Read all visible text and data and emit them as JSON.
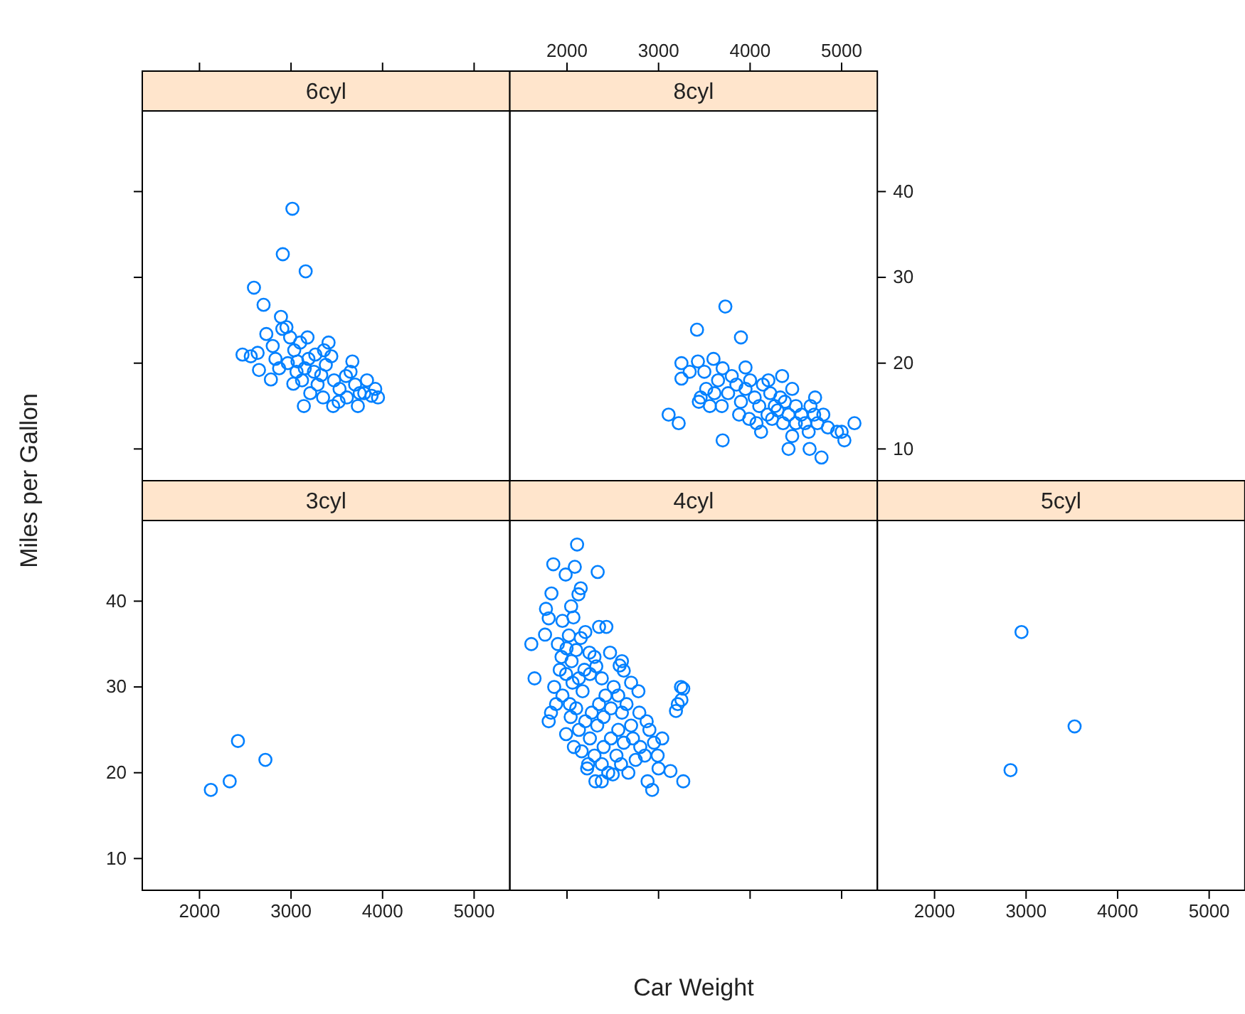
{
  "chart_data": [
    {
      "type": "scatter",
      "title": "6cyl",
      "xlim": [
        1375,
        5390
      ],
      "ylim": [
        6.3,
        49.4
      ],
      "xticks": [
        2000,
        3000,
        4000,
        5000
      ],
      "yticks": [
        10,
        20,
        30,
        40
      ],
      "tick_labels": false,
      "marker": "circle",
      "grid": false,
      "series": [
        {
          "color": "#0080ff",
          "x": [
            3015,
            2910,
            3160,
            2595,
            2700,
            2890,
            2950,
            2730,
            2470,
            2635,
            2650,
            2780,
            3100,
            3410,
            3670,
            3920,
            3730,
            3140,
            3460,
            3880,
            2560,
            2905,
            2990,
            3035,
            3190,
            3250,
            3330,
            3380,
            3470,
            3530,
            3600,
            3700,
            3800,
            3830,
            3290,
            3210,
            3060,
            2965,
            2830,
            3120,
            3350,
            3520,
            3610,
            3440,
            3265,
            3025,
            2870,
            3180,
            3360,
            3650,
            3750,
            3950,
            3070,
            3150,
            2800
          ],
          "values": [
            38.0,
            32.7,
            30.7,
            28.8,
            26.8,
            25.4,
            24.2,
            23.4,
            21.0,
            21.2,
            19.2,
            18.1,
            22.4,
            22.4,
            20.2,
            17.0,
            15.0,
            15.0,
            15.0,
            16.2,
            20.8,
            24.0,
            23.0,
            21.5,
            20.5,
            19.0,
            18.6,
            19.8,
            18.0,
            17.0,
            18.5,
            17.5,
            16.5,
            18.0,
            17.5,
            16.5,
            19.0,
            20.0,
            20.5,
            18.0,
            16.0,
            15.5,
            16.0,
            20.8,
            21.0,
            17.6,
            19.4,
            23.0,
            21.5,
            19.0,
            16.5,
            16.0,
            20.2,
            19.4,
            22.0
          ]
        }
      ]
    },
    {
      "type": "scatter",
      "title": "8cyl",
      "xlim": [
        1375,
        5390
      ],
      "ylim": [
        6.3,
        49.4
      ],
      "xticks": [
        2000,
        3000,
        4000,
        5000
      ],
      "yticks": [
        10,
        20,
        30,
        40
      ],
      "marker": "circle",
      "grid": false,
      "series": [
        {
          "color": "#0080ff",
          "x": [
            3730,
            3420,
            3900,
            3110,
            3220,
            3700,
            4420,
            4650,
            4780,
            5140,
            5000,
            5030,
            4710,
            3250,
            3250,
            3430,
            3500,
            3600,
            3520,
            3460,
            3560,
            3650,
            3700,
            3800,
            3850,
            3760,
            3900,
            3950,
            4000,
            4050,
            4100,
            4140,
            4190,
            4220,
            4270,
            4300,
            4330,
            4360,
            4380,
            4420,
            4460,
            4500,
            4500,
            4560,
            4600,
            4640,
            4660,
            4700,
            4735,
            4800,
            4850,
            4950,
            4070,
            3880,
            3990,
            3690,
            3610,
            4200,
            4350,
            3340,
            3440,
            4120,
            3950,
            4240,
            4460
          ],
          "values": [
            26.6,
            23.9,
            23.0,
            14.0,
            13.0,
            11.0,
            10.0,
            10.0,
            9.0,
            13.0,
            12.0,
            11.0,
            16.0,
            20.0,
            18.2,
            20.2,
            19.0,
            20.5,
            17.0,
            16.0,
            15.0,
            18.0,
            19.4,
            18.5,
            17.5,
            16.5,
            15.5,
            17.0,
            18.0,
            16.0,
            15.0,
            17.5,
            14.0,
            16.5,
            15.0,
            14.5,
            16.0,
            13.0,
            15.5,
            14.0,
            17.0,
            13.0,
            15.0,
            14.0,
            13.0,
            12.0,
            15.0,
            14.0,
            13.0,
            14.0,
            12.5,
            12.0,
            13.0,
            14.0,
            13.5,
            15.0,
            16.5,
            18.0,
            18.5,
            19.0,
            15.5,
            12.0,
            19.5,
            13.5,
            11.5
          ]
        }
      ]
    },
    {
      "type": "scatter",
      "title": "3cyl",
      "ylabel": "Miles per Gallon",
      "xlim": [
        1375,
        5390
      ],
      "ylim": [
        6.3,
        49.4
      ],
      "xticks": [
        2000,
        3000,
        4000,
        5000
      ],
      "yticks": [
        10,
        20,
        30,
        40
      ],
      "marker": "circle",
      "grid": false,
      "series": [
        {
          "color": "#0080ff",
          "x": [
            2124,
            2330,
            2420,
            2720
          ],
          "values": [
            18.0,
            19.0,
            23.7,
            21.5
          ]
        }
      ]
    },
    {
      "type": "scatter",
      "title": "4cyl",
      "xlabel": "Car Weight",
      "xlim": [
        1375,
        5390
      ],
      "ylim": [
        6.3,
        49.4
      ],
      "xticks": [
        2000,
        3000,
        4000,
        5000
      ],
      "yticks": [
        10,
        20,
        30,
        40
      ],
      "tick_labels": false,
      "marker": "circle",
      "grid": false,
      "series": [
        {
          "color": "#0080ff",
          "x": [
            2110,
            1850,
            2085,
            2335,
            1985,
            2150,
            1830,
            2125,
            1770,
            2045,
            2430,
            1610,
            1645,
            3245,
            3210,
            3190,
            3270,
            2930,
            2880,
            2310,
            2230,
            3040,
            3130,
            1800,
            1825,
            1760,
            1800,
            1950,
            2020,
            2070,
            1900,
            1940,
            1995,
            2050,
            2100,
            2150,
            2200,
            2245,
            2300,
            2190,
            2130,
            2060,
            1990,
            1920,
            1860,
            1950,
            2030,
            2100,
            2170,
            2250,
            2320,
            2380,
            2420,
            2350,
            2270,
            2200,
            2130,
            2040,
            1880,
            1990,
            2075,
            2160,
            2250,
            2330,
            2400,
            2480,
            2510,
            2560,
            2600,
            2650,
            2700,
            2560,
            2480,
            2400,
            2300,
            2220,
            2380,
            2450,
            2540,
            2620,
            2720,
            2800,
            2750,
            2670,
            2590,
            2850,
            2900,
            2950,
            2870,
            2790,
            2620,
            2575,
            2470,
            2350,
            2600,
            2700,
            2780,
            2500,
            2380,
            2990,
            3000,
            3270,
            3250
          ],
          "values": [
            46.6,
            44.3,
            44.0,
            43.4,
            43.1,
            41.5,
            40.9,
            40.8,
            39.1,
            39.4,
            37.0,
            35.0,
            31.0,
            30.0,
            28.0,
            27.2,
            19.0,
            18.0,
            19.0,
            19.0,
            21.0,
            24.0,
            20.2,
            26.0,
            27.0,
            36.1,
            38.0,
            37.7,
            36.0,
            38.1,
            35.0,
            33.5,
            34.5,
            33.0,
            34.3,
            35.7,
            36.4,
            34.0,
            33.5,
            32.0,
            31.0,
            30.5,
            31.5,
            32.0,
            30.0,
            29.0,
            28.0,
            27.5,
            29.5,
            31.5,
            32.4,
            31.0,
            29.0,
            28.0,
            27.0,
            26.0,
            25.0,
            26.5,
            28.0,
            24.5,
            23.0,
            22.5,
            24.0,
            25.5,
            26.5,
            27.5,
            30.0,
            29.0,
            27.0,
            28.0,
            25.5,
            25.0,
            24.0,
            23.0,
            22.0,
            20.5,
            21.0,
            20.0,
            22.0,
            23.5,
            24.0,
            23.0,
            21.5,
            20.0,
            21.0,
            22.0,
            25.0,
            23.5,
            26.0,
            27.0,
            31.9,
            32.5,
            34.0,
            37.0,
            33.0,
            30.5,
            29.5,
            19.8,
            19.0,
            22.0,
            20.5,
            29.8,
            28.5
          ]
        }
      ]
    },
    {
      "type": "scatter",
      "title": "5cyl",
      "xlim": [
        1375,
        5390
      ],
      "ylim": [
        6.3,
        49.4
      ],
      "xticks": [
        2000,
        3000,
        4000,
        5000
      ],
      "yticks": [
        10,
        20,
        30,
        40
      ],
      "tick_labels": "x",
      "marker": "circle",
      "grid": false,
      "series": [
        {
          "color": "#0080ff",
          "x": [
            2830,
            2950,
            3530
          ],
          "values": [
            20.3,
            36.4,
            25.4
          ]
        }
      ]
    }
  ]
}
